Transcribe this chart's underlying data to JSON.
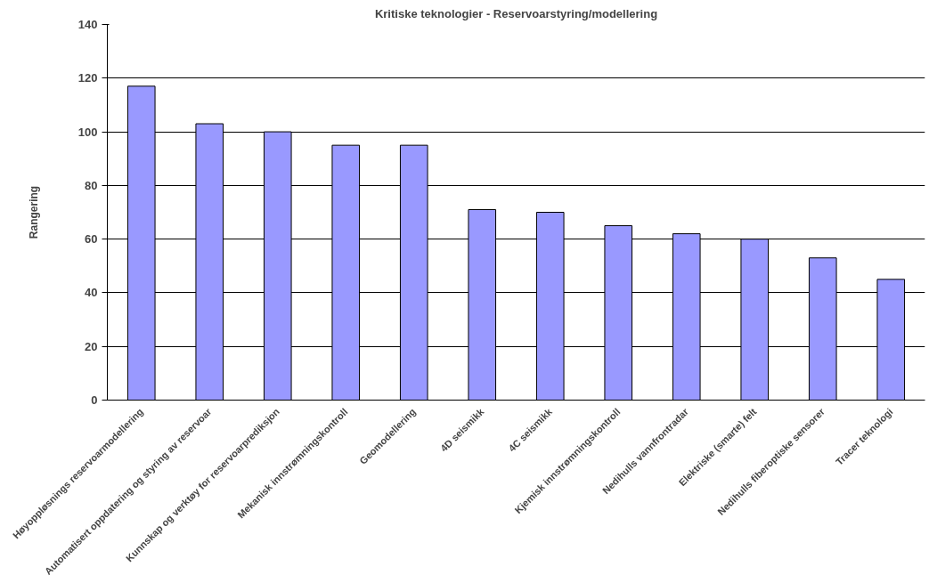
{
  "chart_data": {
    "type": "bar",
    "title": "Kritiske teknologier - Reservoarstyring/modellering",
    "ylabel": "Rangering",
    "categories": [
      "Høyoppløsnings reservoarmodellering",
      "Automatisert oppdatering og styring av reservoar",
      "Kunnskap og verktøy for reservoarprediksjon",
      "Mekanisk innstrømningskontroll",
      "Geomodellering",
      "4D seismikk",
      "4C seismikk",
      "Kjemisk innstrømningskontroll",
      "Nedihulls vannfrontradar",
      "Elektriske (smarte) felt",
      "Nedihulls fiberoptiske sensorer",
      "Tracer teknologi"
    ],
    "values": [
      117,
      103,
      100,
      95,
      95,
      71,
      70,
      65,
      62,
      60,
      53,
      45
    ],
    "color": "#9999ff",
    "ylim": [
      0,
      140
    ],
    "yticks": [
      0,
      20,
      40,
      60,
      80,
      100,
      120,
      140
    ],
    "grid": "y"
  }
}
